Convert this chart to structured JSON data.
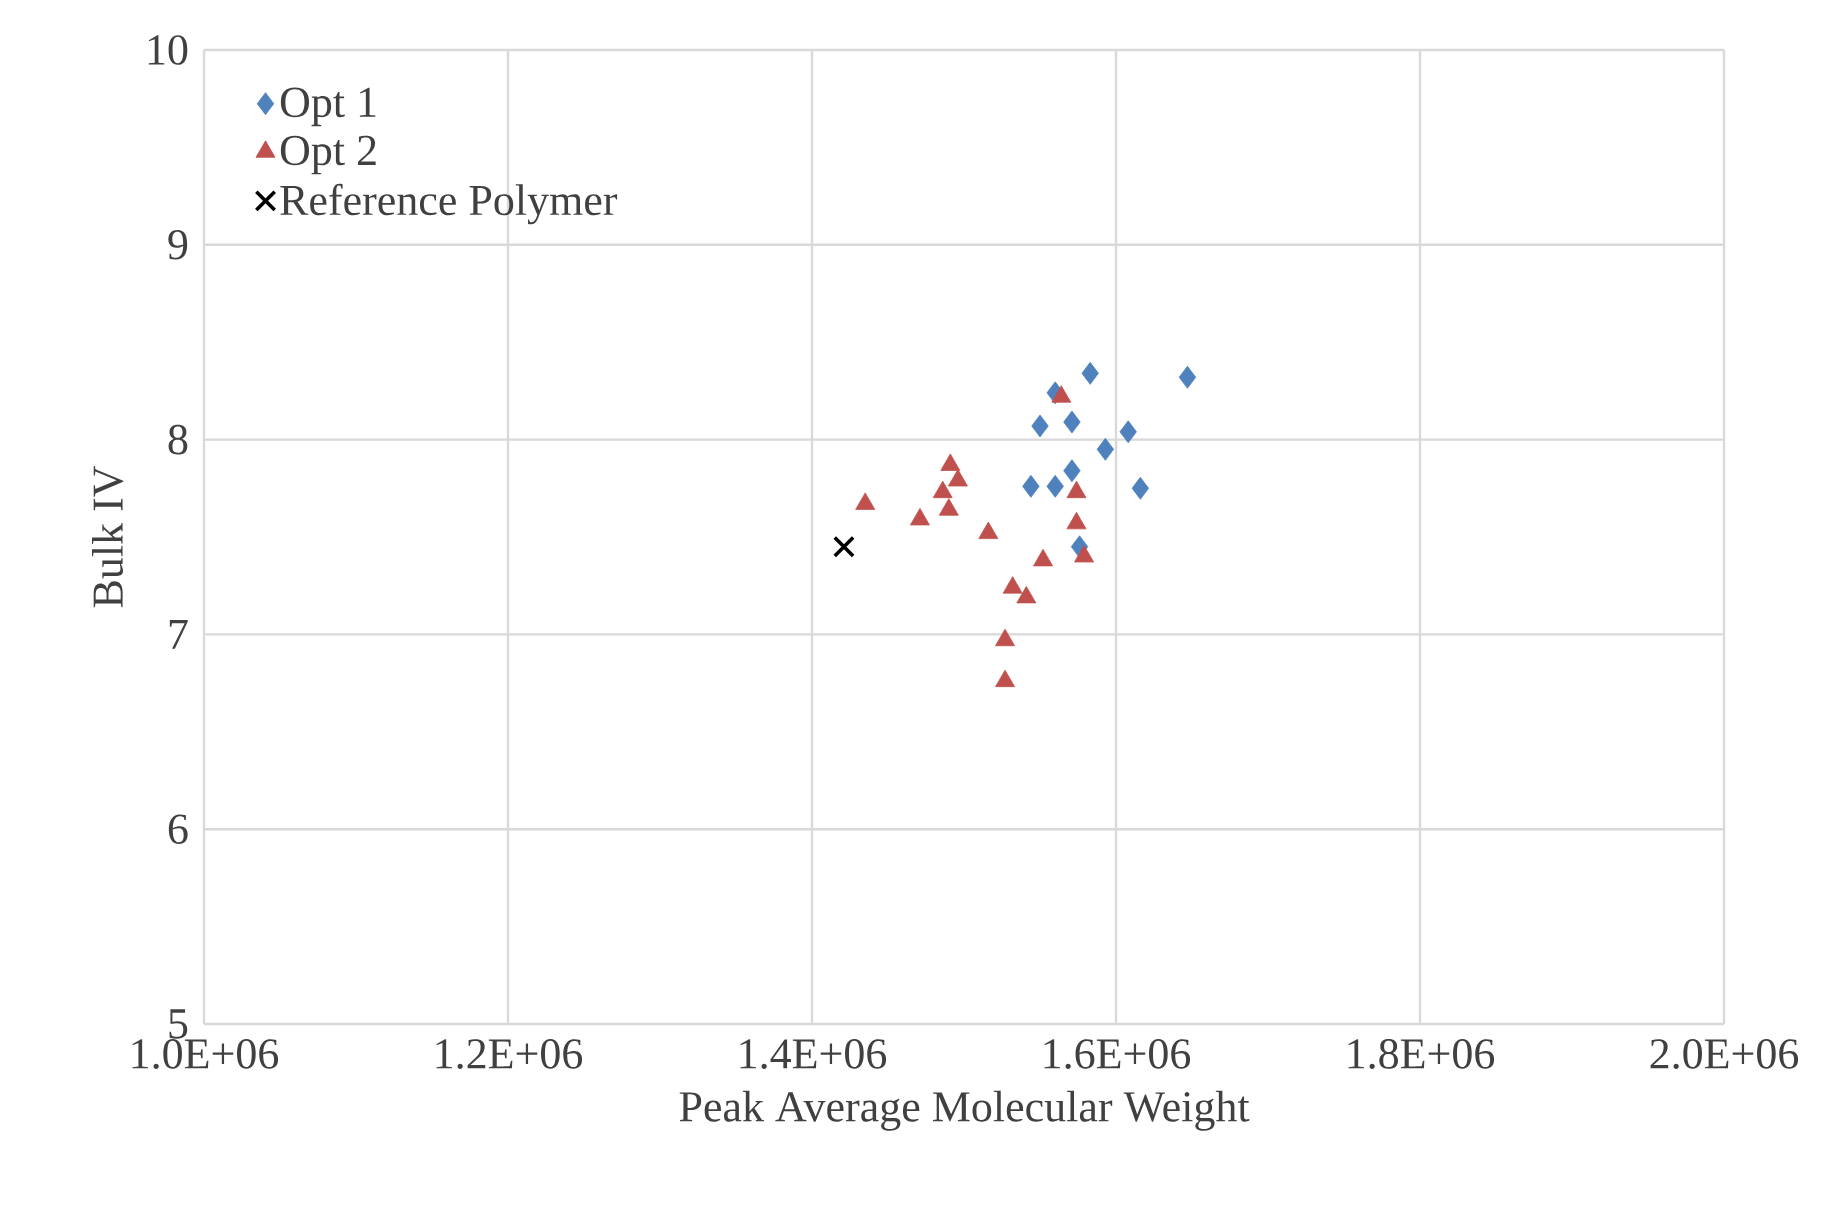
{
  "chart_data": {
    "type": "scatter",
    "xlabel": "Peak Average Molecular Weight",
    "ylabel": "Bulk IV",
    "xlim": [
      1000000,
      2000000
    ],
    "ylim": [
      5,
      10
    ],
    "xticks": [
      {
        "value": 1000000,
        "label": "1.0E+06"
      },
      {
        "value": 1200000,
        "label": "1.2E+06"
      },
      {
        "value": 1400000,
        "label": "1.4E+06"
      },
      {
        "value": 1600000,
        "label": "1.6E+06"
      },
      {
        "value": 1800000,
        "label": "1.8E+06"
      },
      {
        "value": 2000000,
        "label": "2.0E+06"
      }
    ],
    "yticks": [
      5,
      6,
      7,
      8,
      9,
      10
    ],
    "grid": true,
    "legend": "top left",
    "series": [
      {
        "name": "Opt 1",
        "color": "#4f81bd",
        "marker": "diamond",
        "x": [
          1583000,
          1647000,
          1560000,
          1550000,
          1571000,
          1608000,
          1593000,
          1544000,
          1560000,
          1571000,
          1616000,
          1576000
        ],
        "values": [
          8.34,
          8.32,
          8.24,
          8.07,
          8.09,
          8.04,
          7.95,
          7.76,
          7.76,
          7.84,
          7.75,
          7.45
        ]
      },
      {
        "name": "Opt 2",
        "color": "#c0504d",
        "marker": "triangle",
        "x": [
          1564000,
          1491000,
          1496000,
          1486000,
          1490000,
          1435000,
          1471000,
          1516000,
          1574000,
          1574000,
          1579000,
          1552000,
          1532000,
          1541000,
          1527000,
          1527000
        ],
        "values": [
          8.22,
          7.87,
          7.79,
          7.73,
          7.64,
          7.67,
          7.59,
          7.52,
          7.73,
          7.57,
          7.4,
          7.38,
          7.24,
          7.19,
          6.97,
          6.76
        ]
      },
      {
        "name": "Reference Polymer",
        "color": "#000000",
        "marker": "cross",
        "x": [
          1421000
        ],
        "values": [
          7.45
        ]
      }
    ]
  }
}
